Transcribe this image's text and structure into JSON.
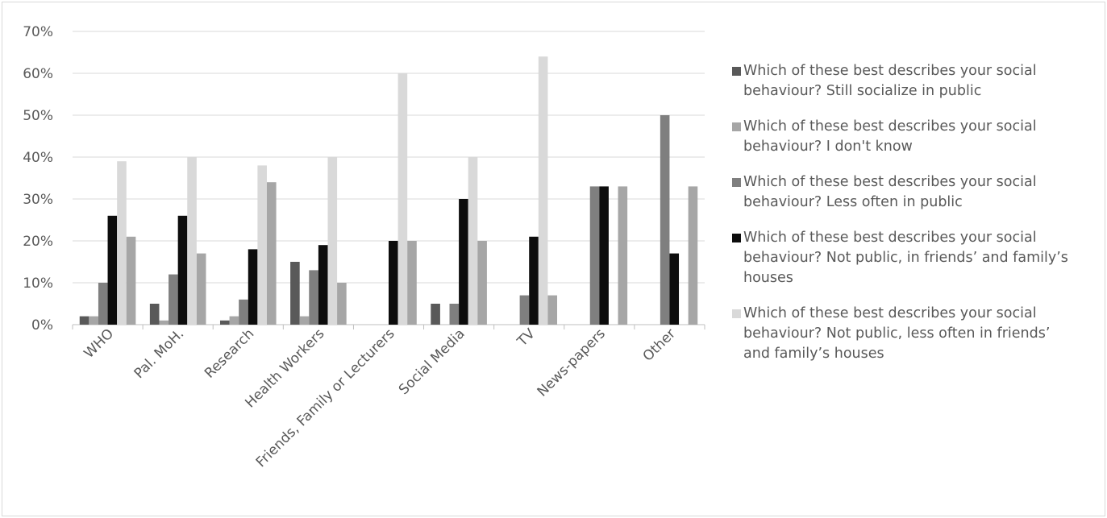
{
  "chart_data": {
    "type": "bar",
    "title": "",
    "xlabel": "",
    "ylabel": "",
    "ylim": [
      0,
      70
    ],
    "yticks": [
      "0%",
      "10%",
      "20%",
      "30%",
      "40%",
      "50%",
      "60%",
      "70%"
    ],
    "grid": true,
    "legend_position": "right",
    "categories": [
      "WHO",
      "Pal. MoH.",
      "Research",
      "Health Workers",
      "Friends, Family or Lecturers",
      "Social Media",
      "TV",
      "News-papers",
      "Other"
    ],
    "series": [
      {
        "name": "Which of these best describes your social behaviour? Still socialize in public",
        "color": "#595959",
        "values": [
          2,
          5,
          1,
          15,
          0,
          5,
          0,
          0,
          0
        ]
      },
      {
        "name": "Which of these best describes your social behaviour? I don't know",
        "color": "#a6a6a6",
        "values": [
          2,
          1,
          2,
          2,
          0,
          0,
          0,
          0,
          0
        ]
      },
      {
        "name": "Which of these best describes your social behaviour? Less often in public",
        "color": "#7f7f7f",
        "values": [
          10,
          12,
          6,
          13,
          0,
          5,
          7,
          33,
          50
        ]
      },
      {
        "name": "Which of these best describes your social behaviour? Not public, in friends’ and family’s houses",
        "color": "#0d0d0d",
        "values": [
          26,
          26,
          18,
          19,
          20,
          30,
          21,
          33,
          17
        ]
      },
      {
        "name": "Which of these best describes your social behaviour? Not public, less often in friends’ and family’s houses",
        "color": "#d9d9d9",
        "values": [
          39,
          40,
          38,
          40,
          60,
          40,
          64,
          0,
          0
        ]
      },
      {
        "name": "",
        "color": "#a6a6a6",
        "values": [
          21,
          17,
          34,
          10,
          20,
          20,
          7,
          33,
          33
        ]
      }
    ]
  }
}
